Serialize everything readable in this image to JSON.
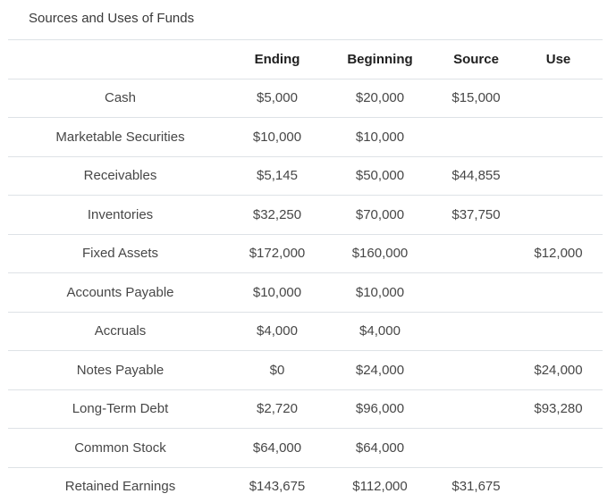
{
  "title": "Sources and Uses of Funds",
  "table": {
    "columns": {
      "label": "",
      "ending": "Ending",
      "beginning": "Beginning",
      "source": "Source",
      "use": "Use"
    },
    "rows": [
      {
        "label": "Cash",
        "ending": "$5,000",
        "beginning": "$20,000",
        "source": "$15,000",
        "use": ""
      },
      {
        "label": "Marketable Securities",
        "ending": "$10,000",
        "beginning": "$10,000",
        "source": "",
        "use": ""
      },
      {
        "label": "Receivables",
        "ending": "$5,145",
        "beginning": "$50,000",
        "source": "$44,855",
        "use": ""
      },
      {
        "label": "Inventories",
        "ending": "$32,250",
        "beginning": "$70,000",
        "source": "$37,750",
        "use": ""
      },
      {
        "label": "Fixed Assets",
        "ending": "$172,000",
        "beginning": "$160,000",
        "source": "",
        "use": "$12,000"
      },
      {
        "label": "Accounts Payable",
        "ending": "$10,000",
        "beginning": "$10,000",
        "source": "",
        "use": ""
      },
      {
        "label": "Accruals",
        "ending": "$4,000",
        "beginning": "$4,000",
        "source": "",
        "use": ""
      },
      {
        "label": "Notes Payable",
        "ending": "$0",
        "beginning": "$24,000",
        "source": "",
        "use": "$24,000"
      },
      {
        "label": "Long-Term Debt",
        "ending": "$2,720",
        "beginning": "$96,000",
        "source": "",
        "use": "$93,280"
      },
      {
        "label": "Common Stock",
        "ending": "$64,000",
        "beginning": "$64,000",
        "source": "",
        "use": ""
      },
      {
        "label": "Retained Earnings",
        "ending": "$143,675",
        "beginning": "$112,000",
        "source": "$31,675",
        "use": ""
      }
    ]
  },
  "colors": {
    "background": "#ffffff",
    "row_border": "#dee2e6",
    "header_text": "#1f1f1f",
    "body_text": "#474747",
    "title_text": "#3a3a3a"
  }
}
